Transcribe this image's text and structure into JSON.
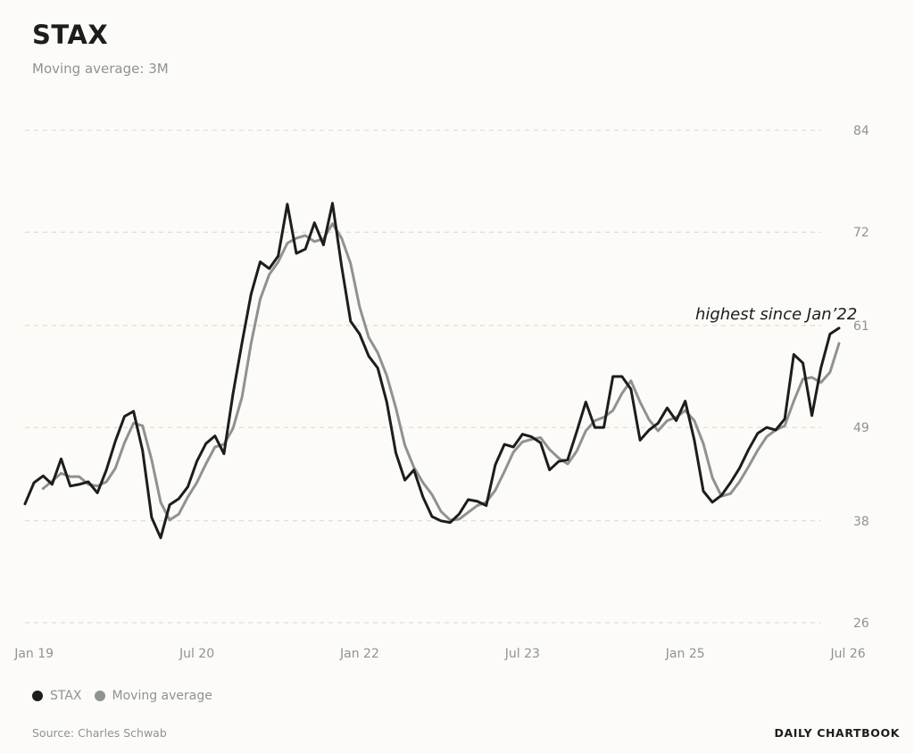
{
  "header": {
    "title": "STAX",
    "subtitle": "Moving average: 3M"
  },
  "legend": {
    "items": [
      {
        "label": "STAX",
        "color": "#1c1e1c"
      },
      {
        "label": "Moving average",
        "color": "#8f938f"
      }
    ]
  },
  "footer": {
    "source": "Source: Charles Schwab",
    "brand": "DAILY CHARTBOOK"
  },
  "colors": {
    "stax": "#1c1e1c",
    "moving_average": "#8f938f",
    "grid": "#d6d6d0",
    "background": "#fcfbf7"
  },
  "chart_data": {
    "type": "line",
    "title": "STAX",
    "subtitle": "Moving average: 3M",
    "x_start": "2018-12",
    "x_frequency": "monthly",
    "x_tick_labels": [
      {
        "label": "Jan 19",
        "date": "2019-01"
      },
      {
        "label": "Jul 20",
        "date": "2020-07"
      },
      {
        "label": "Jan 22",
        "date": "2022-01"
      },
      {
        "label": "Jul 23",
        "date": "2023-07"
      },
      {
        "label": "Jan 25",
        "date": "2025-01"
      },
      {
        "label": "Jul 26",
        "date": "2026-07"
      }
    ],
    "y_ticks": [
      26,
      38,
      49,
      61,
      72,
      84
    ],
    "ylim": [
      26,
      84
    ],
    "y_axis_position": "right",
    "grid": "horizontal-dashed",
    "legend_position": "bottom-left",
    "series": [
      {
        "name": "STAX",
        "values": [
          40,
          42.5,
          43.3,
          42.3,
          45.3,
          42.1,
          42.3,
          42.6,
          41.3,
          44,
          47.4,
          50.3,
          50.9,
          46.3,
          38.4,
          36,
          39.9,
          40.6,
          42,
          45,
          47.1,
          48,
          45.9,
          53,
          59,
          64.7,
          68.5,
          67.7,
          69.2,
          75.3,
          69.5,
          70,
          73.1,
          70.5,
          75.4,
          68,
          61.5,
          60,
          57.4,
          56,
          52,
          46,
          42.8,
          44,
          40.8,
          38.5,
          38,
          37.8,
          38.8,
          40.5,
          40.3,
          39.8,
          44.6,
          47,
          46.7,
          48.2,
          47.9,
          47.2,
          44,
          45,
          45.2,
          48.5,
          52,
          49,
          49,
          55,
          55,
          53.5,
          47.5,
          48.7,
          49.5,
          51.3,
          49.8,
          52.1,
          47.5,
          41.5,
          40.2,
          41,
          42.5,
          44.2,
          46.4,
          48.3,
          49,
          48.7,
          50,
          57.6,
          56.6,
          50.4,
          56,
          60,
          60.7
        ]
      },
      {
        "name": "Moving average",
        "values": [
          null,
          null,
          41.8,
          42.7,
          43.6,
          43.2,
          43.2,
          42.3,
          42.1,
          42.6,
          44.2,
          47.2,
          49.5,
          49.2,
          45.2,
          40.2,
          38.1,
          38.8,
          40.8,
          42.5,
          44.7,
          46.7,
          47,
          48.9,
          52.6,
          58.9,
          64.1,
          67,
          68.5,
          70.7,
          71.3,
          71.6,
          70.9,
          71.2,
          73,
          71.3,
          68.3,
          63.2,
          59.6,
          57.8,
          55.1,
          51.3,
          46.9,
          44.3,
          42.5,
          41.1,
          39.1,
          38.1,
          38.2,
          39,
          39.8,
          40.2,
          41.6,
          43.8,
          46.1,
          47.3,
          47.6,
          47.8,
          46.4,
          45.4,
          44.7,
          46.2,
          48.6,
          49.8,
          50.2,
          51,
          53,
          54.5,
          52,
          49.9,
          48.6,
          49.8,
          50.2,
          51,
          49.8,
          47.1,
          43.1,
          40.9,
          41.2,
          42.6,
          44.4,
          46.3,
          47.9,
          48.7,
          49.2,
          52.1,
          54.7,
          54.9,
          54.3,
          55.5,
          58.9
        ]
      }
    ],
    "annotations": [
      {
        "text": "highest since Jan’22",
        "anchor_date": "2026-08"
      }
    ]
  }
}
